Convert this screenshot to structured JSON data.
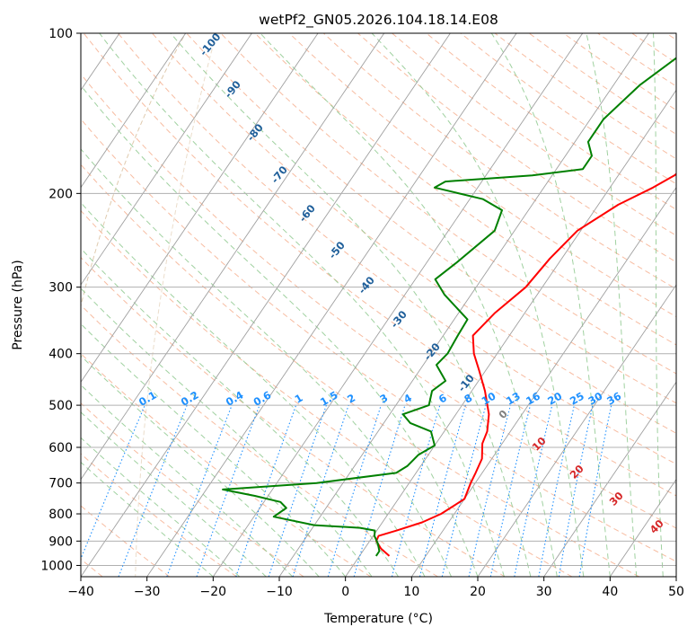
{
  "chart_data": {
    "type": "line",
    "title": "wetPf2_GN05.2026.104.18.14.E08",
    "xlabel": "Temperature (°C)",
    "ylabel": "Pressure (hPa)",
    "xlim": [
      -40,
      50
    ],
    "ylim": [
      1050,
      100
    ],
    "y_scale": "log",
    "grid": true,
    "x_ticks": [
      -40,
      -30,
      -20,
      -10,
      0,
      10,
      20,
      30,
      40,
      50
    ],
    "x_tick_labels": [
      "−40",
      "−30",
      "−20",
      "−10",
      "0",
      "10",
      "20",
      "30",
      "40",
      "50"
    ],
    "y_ticks": [
      100,
      200,
      300,
      400,
      500,
      600,
      700,
      800,
      900,
      1000
    ],
    "y_tick_labels": [
      "100",
      "200",
      "300",
      "400",
      "500",
      "600",
      "700",
      "800",
      "900",
      "1000"
    ],
    "series": [
      {
        "color": "#ff0000",
        "points": [
          [
            4.5,
            960
          ],
          [
            2.5,
            930
          ],
          [
            1,
            900
          ],
          [
            0.8,
            880
          ],
          [
            3,
            860
          ],
          [
            6,
            830
          ],
          [
            8,
            800
          ],
          [
            10,
            750
          ],
          [
            9.3,
            700
          ],
          [
            9,
            670
          ],
          [
            8.5,
            630
          ],
          [
            7,
            590
          ],
          [
            6.5,
            560
          ],
          [
            5,
            520
          ],
          [
            2,
            470
          ],
          [
            -1,
            430
          ],
          [
            -3.5,
            400
          ],
          [
            -5.5,
            370
          ],
          [
            -4.5,
            335
          ],
          [
            -2.5,
            300
          ],
          [
            -1.8,
            265
          ],
          [
            -0.5,
            235
          ],
          [
            3,
            210
          ],
          [
            6.5,
            195
          ],
          [
            8.5,
            185
          ],
          [
            9.5,
            175
          ],
          [
            12.5,
            160
          ],
          [
            16,
            145
          ],
          [
            17.5,
            135
          ],
          [
            19,
            120
          ],
          [
            21.5,
            108
          ],
          [
            25,
            100
          ]
        ]
      },
      {
        "color": "#008000",
        "points": [
          [
            2.5,
            960
          ],
          [
            2.5,
            940
          ],
          [
            1.5,
            910
          ],
          [
            0.2,
            880
          ],
          [
            -0.3,
            860
          ],
          [
            -2.8,
            850
          ],
          [
            -10,
            840
          ],
          [
            -17,
            810
          ],
          [
            -16,
            780
          ],
          [
            -17.5,
            760
          ],
          [
            -22,
            740
          ],
          [
            -27.5,
            720
          ],
          [
            -14,
            700
          ],
          [
            -3,
            670
          ],
          [
            -2,
            650
          ],
          [
            -1.5,
            620
          ],
          [
            0,
            595
          ],
          [
            -2,
            560
          ],
          [
            -6,
            540
          ],
          [
            -8,
            520
          ],
          [
            -5,
            500
          ],
          [
            -6,
            470
          ],
          [
            -5,
            450
          ],
          [
            -8,
            420
          ],
          [
            -7.5,
            400
          ],
          [
            -7.8,
            370
          ],
          [
            -8,
            345
          ],
          [
            -14,
            310
          ],
          [
            -17,
            290
          ],
          [
            -15.5,
            270
          ],
          [
            -13,
            235
          ],
          [
            -14,
            215
          ],
          [
            -18,
            205
          ],
          [
            -26.5,
            195
          ],
          [
            -25.5,
            190
          ],
          [
            -13,
            185
          ],
          [
            -6,
            180
          ],
          [
            -6,
            170
          ],
          [
            -8,
            160
          ],
          [
            -8,
            145
          ],
          [
            -6,
            125
          ],
          [
            -3,
            110
          ],
          [
            -0.5,
            100
          ]
        ]
      }
    ],
    "dry_adiabat_labels": [
      "-100",
      "-90",
      "-80",
      "-70",
      "-60",
      "-50",
      "-40",
      "-30",
      "-20",
      "-10"
    ],
    "moist_adiabat_labels": [
      "0",
      "10",
      "20",
      "30",
      "40"
    ],
    "mixing_ratio_labels": [
      "0.1",
      "0.2",
      "0.4",
      "0.6",
      "1",
      "1.5",
      "2",
      "3",
      "4",
      "6",
      "8",
      "10",
      "13",
      "16",
      "20",
      "25",
      "30",
      "36"
    ],
    "mixing_ratio_values": [
      0.1,
      0.2,
      0.4,
      0.6,
      1,
      1.5,
      2,
      3,
      4,
      6,
      8,
      10,
      13,
      16,
      20,
      25,
      30,
      36
    ],
    "colors": {
      "temperature": "#ff0000",
      "dewpoint": "#008000",
      "isotherm": "#a0a0a0",
      "dry_adiabat": "#f4a582",
      "moist_adiabat": "#8fc98f",
      "mixing_ratio": "#1e90ff",
      "pressure_grid": "#b0b0b0",
      "reference_arc": "#d2b48c"
    }
  }
}
